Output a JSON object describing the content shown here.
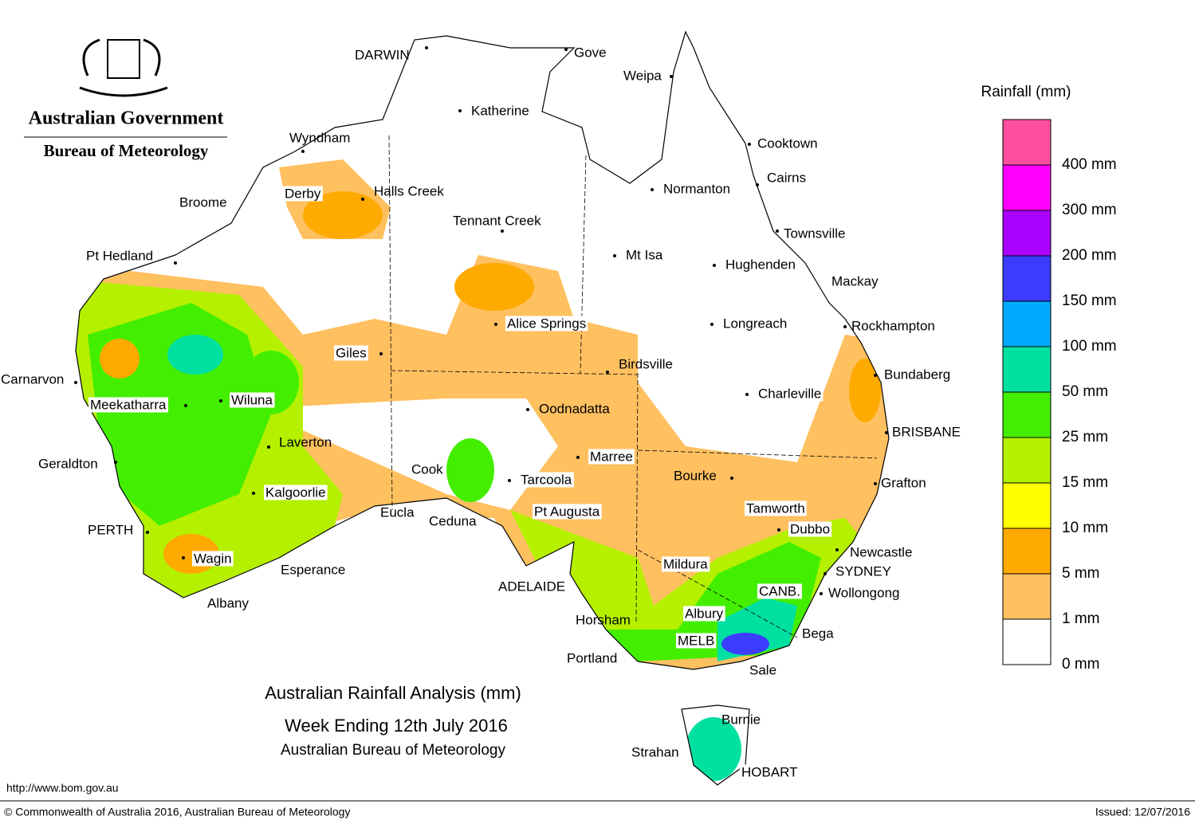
{
  "header": {
    "agency": "Australian Government",
    "bureau": "Bureau of Meteorology"
  },
  "title": {
    "line1": "Australian Rainfall Analysis (mm)",
    "line2": "Week Ending 12th July 2016",
    "line3": "Australian Bureau of Meteorology"
  },
  "legend": {
    "title": "Rainfall (mm)",
    "items": [
      {
        "label": "0 mm",
        "color": "#ffffff"
      },
      {
        "label": "1 mm",
        "color": "#ffc060"
      },
      {
        "label": "5 mm",
        "color": "#ffaa00"
      },
      {
        "label": "10 mm",
        "color": "#ffff00"
      },
      {
        "label": "15 mm",
        "color": "#b4f000"
      },
      {
        "label": "25 mm",
        "color": "#44ee00"
      },
      {
        "label": "50 mm",
        "color": "#00e0a0"
      },
      {
        "label": "100 mm",
        "color": "#00aaff"
      },
      {
        "label": "150 mm",
        "color": "#3c3cff"
      },
      {
        "label": "200 mm",
        "color": "#aa00ff"
      },
      {
        "label": "300 mm",
        "color": "#ff00ff"
      },
      {
        "label": "400 mm",
        "color": "#ff4fa0"
      }
    ]
  },
  "places": [
    "DARWIN",
    "Gove",
    "Weipa",
    "Katherine",
    "Wyndham",
    "Cooktown",
    "Derby",
    "Halls Creek",
    "Normanton",
    "Cairns",
    "Broome",
    "Tennant Creek",
    "Townsville",
    "Pt Hedland",
    "Mt Isa",
    "Hughenden",
    "Mackay",
    "Alice Springs",
    "Longreach",
    "Rockhampton",
    "Giles",
    "Birdsville",
    "Bundaberg",
    "Carnarvon",
    "Charleville",
    "Meekatharra",
    "Wiluna",
    "Oodnadatta",
    "BRISBANE",
    "Laverton",
    "Marree",
    "Geraldton",
    "Cook",
    "Bourke",
    "Tarcoola",
    "Grafton",
    "Kalgoorlie",
    "Tamworth",
    "Eucla",
    "Pt Augusta",
    "Ceduna",
    "PERTH",
    "Dubbo",
    "Newcastle",
    "Wagin",
    "Mildura",
    "Esperance",
    "SYDNEY",
    "ADELAIDE",
    "CANB.",
    "Wollongong",
    "Albany",
    "Horsham",
    "Albury",
    "Bega",
    "MELB",
    "Portland",
    "Sale",
    "Burnie",
    "Strahan",
    "HOBART"
  ],
  "footer": {
    "url": "http://www.bom.gov.au",
    "copyright": "© Commonwealth of Australia 2016, Australian Bureau of Meteorology",
    "issued": "Issued: 12/07/2016"
  }
}
